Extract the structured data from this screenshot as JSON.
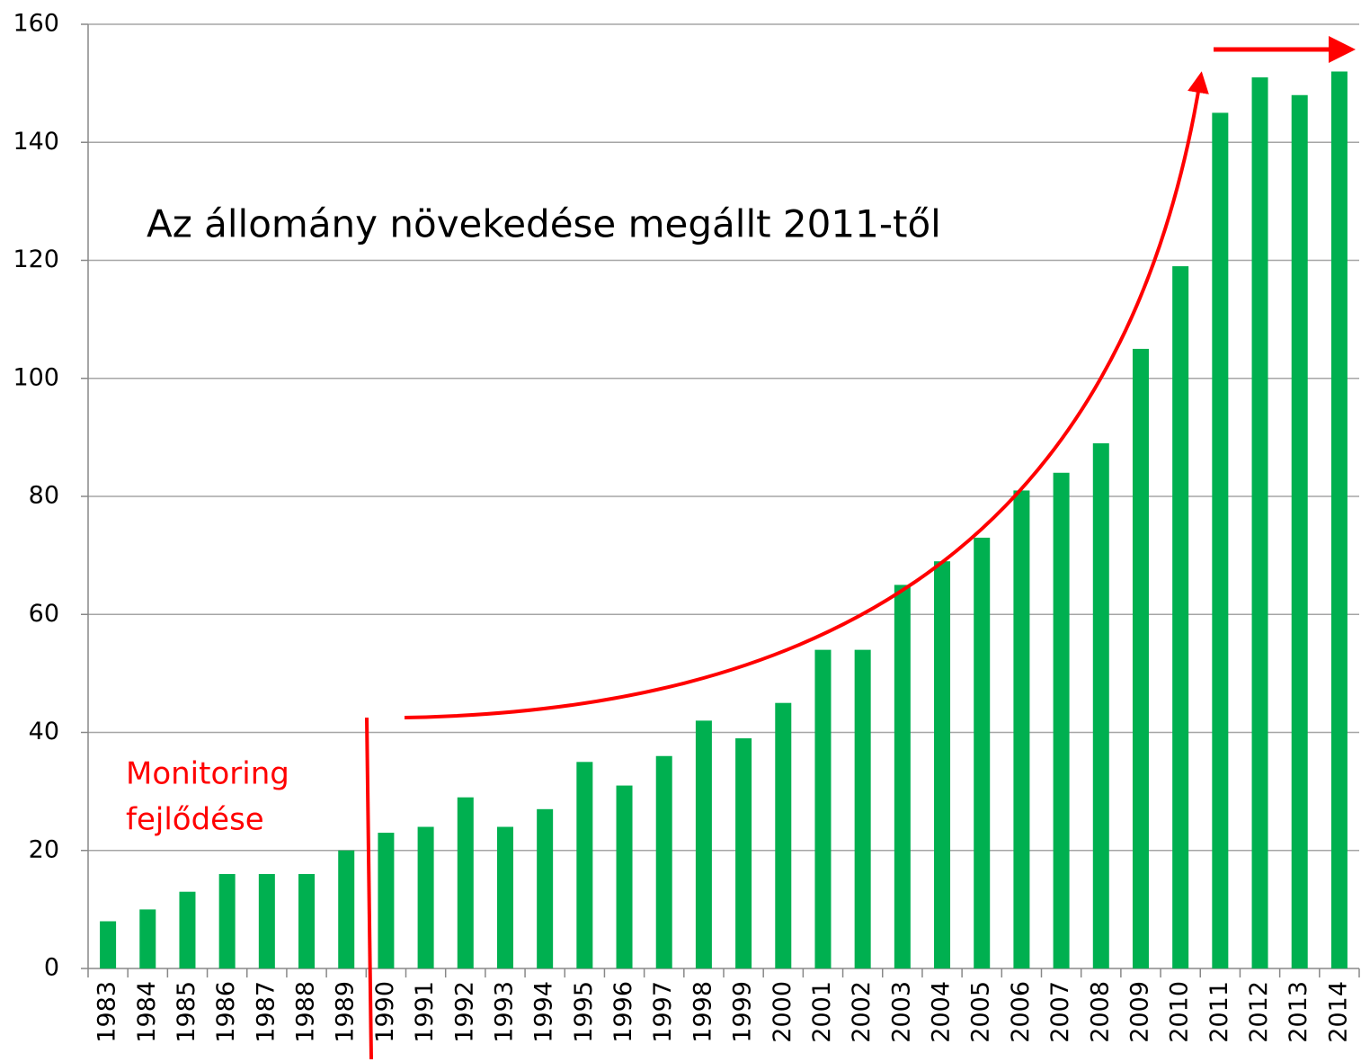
{
  "chart_data": {
    "type": "bar",
    "categories": [
      "1983",
      "1984",
      "1985",
      "1986",
      "1987",
      "1988",
      "1989",
      "1990",
      "1991",
      "1992",
      "1993",
      "1994",
      "1995",
      "1996",
      "1997",
      "1998",
      "1999",
      "2000",
      "2001",
      "2002",
      "2003",
      "2004",
      "2005",
      "2006",
      "2007",
      "2008",
      "2009",
      "2010",
      "2011",
      "2012",
      "2013",
      "2014"
    ],
    "values": [
      8,
      10,
      13,
      16,
      16,
      16,
      20,
      23,
      24,
      29,
      24,
      27,
      35,
      31,
      36,
      42,
      39,
      45,
      54,
      54,
      65,
      69,
      73,
      81,
      84,
      89,
      105,
      119,
      145,
      151,
      148,
      152
    ],
    "color": "#00b050",
    "ylim": [
      0,
      160
    ],
    "yticks": [
      0,
      20,
      40,
      60,
      80,
      100,
      120,
      140,
      160
    ],
    "grid": true,
    "annotations": [
      "Az állomány növekedése megállt 2011-től",
      "Monitoring",
      "fejlődése"
    ]
  }
}
